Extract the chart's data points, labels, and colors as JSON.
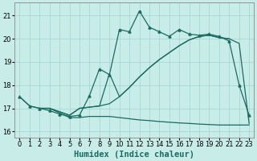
{
  "xlabel": "Humidex (Indice chaleur)",
  "bg_color": "#c8ece8",
  "grid_color": "#a0d4d0",
  "line_color": "#1a6b60",
  "xlim": [
    -0.5,
    23.5
  ],
  "ylim": [
    15.75,
    21.55
  ],
  "xticks": [
    0,
    1,
    2,
    3,
    4,
    5,
    6,
    7,
    8,
    9,
    10,
    11,
    12,
    13,
    14,
    15,
    16,
    17,
    18,
    19,
    20,
    21,
    22,
    23
  ],
  "yticks": [
    16,
    17,
    18,
    19,
    20,
    21
  ],
  "curve_jagged_x": [
    0,
    1,
    2,
    3,
    4,
    5,
    6,
    7,
    8,
    9,
    10,
    11,
    12,
    13,
    14,
    15,
    16,
    17,
    18,
    19,
    20,
    21,
    22,
    23
  ],
  "curve_jagged_y": [
    17.5,
    17.1,
    17.0,
    16.9,
    16.75,
    16.65,
    16.7,
    17.55,
    18.7,
    18.45,
    20.4,
    20.3,
    21.2,
    20.5,
    20.3,
    20.1,
    20.4,
    20.2,
    20.15,
    20.2,
    20.1,
    19.9,
    18.0,
    16.7
  ],
  "curve_diag_upper_x": [
    2,
    3,
    4,
    5,
    6,
    7,
    8,
    9,
    10,
    11,
    12,
    13,
    14,
    15,
    16,
    17,
    18,
    19,
    20,
    21,
    22,
    23
  ],
  "curve_diag_upper_y": [
    17.0,
    17.0,
    16.85,
    16.7,
    17.0,
    17.05,
    17.1,
    18.5,
    17.5,
    17.9,
    18.35,
    18.75,
    19.1,
    19.4,
    19.7,
    19.95,
    20.1,
    20.15,
    20.05,
    20.0,
    19.8,
    16.35
  ],
  "curve_diag_lower_x": [
    2,
    3,
    4,
    5,
    6,
    7,
    8,
    9,
    10,
    11,
    12,
    13,
    14,
    15,
    16,
    17,
    18,
    19,
    20,
    21
  ],
  "curve_diag_lower_y": [
    17.0,
    17.0,
    16.85,
    16.7,
    17.0,
    17.05,
    17.1,
    17.2,
    17.5,
    17.9,
    18.35,
    18.75,
    19.1,
    19.4,
    19.7,
    19.95,
    20.1,
    20.15,
    20.05,
    20.0
  ],
  "curve_flat_x": [
    0,
    1,
    2,
    3,
    4,
    5,
    6,
    7,
    8,
    9,
    10,
    11,
    12,
    13,
    14,
    15,
    16,
    17,
    18,
    19,
    20,
    21,
    22,
    23
  ],
  "curve_flat_y": [
    17.5,
    17.1,
    17.0,
    17.0,
    16.8,
    16.6,
    16.6,
    16.65,
    16.65,
    16.65,
    16.6,
    16.55,
    16.5,
    16.47,
    16.43,
    16.4,
    16.37,
    16.35,
    16.32,
    16.3,
    16.28,
    16.28,
    16.28,
    16.28
  ],
  "xlabel_fontsize": 7.5,
  "tick_fontsize": 6.0,
  "line_width": 0.9,
  "marker_size": 2.2
}
